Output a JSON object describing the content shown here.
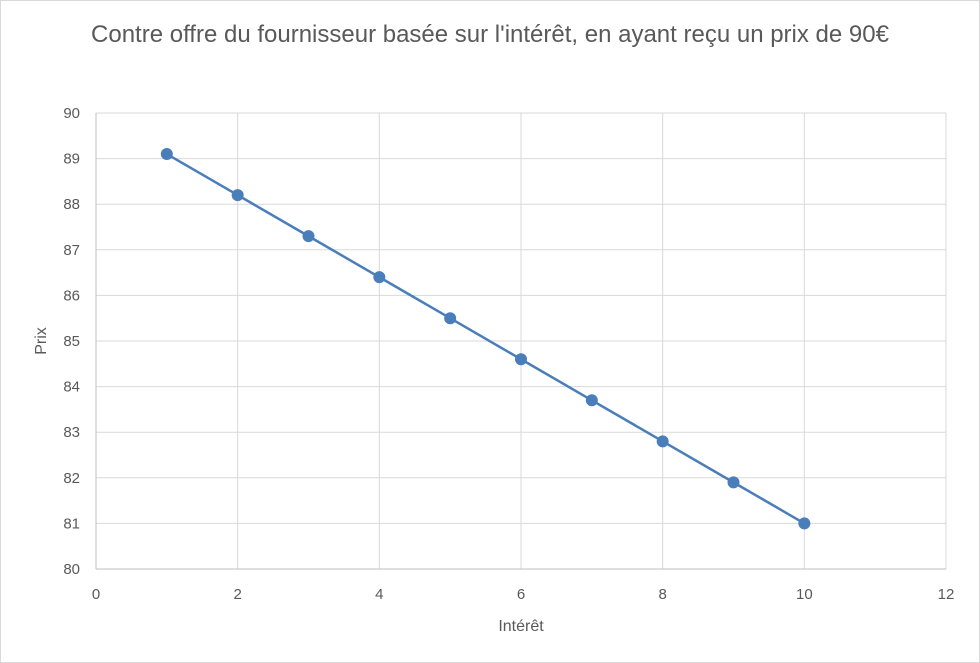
{
  "chart_data": {
    "type": "scatter",
    "mode": "lines+markers",
    "title": "Contre offre du fournisseur basée sur l'intérêt, en ayant reçu un prix de 90€",
    "xlabel": "Intérêt",
    "ylabel": "Prix",
    "xlim": [
      0,
      12
    ],
    "ylim": [
      80,
      90
    ],
    "xticks": [
      0,
      2,
      4,
      6,
      8,
      10,
      12
    ],
    "yticks": [
      80,
      81,
      82,
      83,
      84,
      85,
      86,
      87,
      88,
      89,
      90
    ],
    "grid": true,
    "legend": "none",
    "series": [
      {
        "x": [
          1,
          2,
          3,
          4,
          5,
          6,
          7,
          8,
          9,
          10
        ],
        "y": [
          89.1,
          88.2,
          87.3,
          86.4,
          85.5,
          84.6,
          83.7,
          82.8,
          81.9,
          81.0
        ],
        "color": "#4a7ebb"
      }
    ]
  }
}
